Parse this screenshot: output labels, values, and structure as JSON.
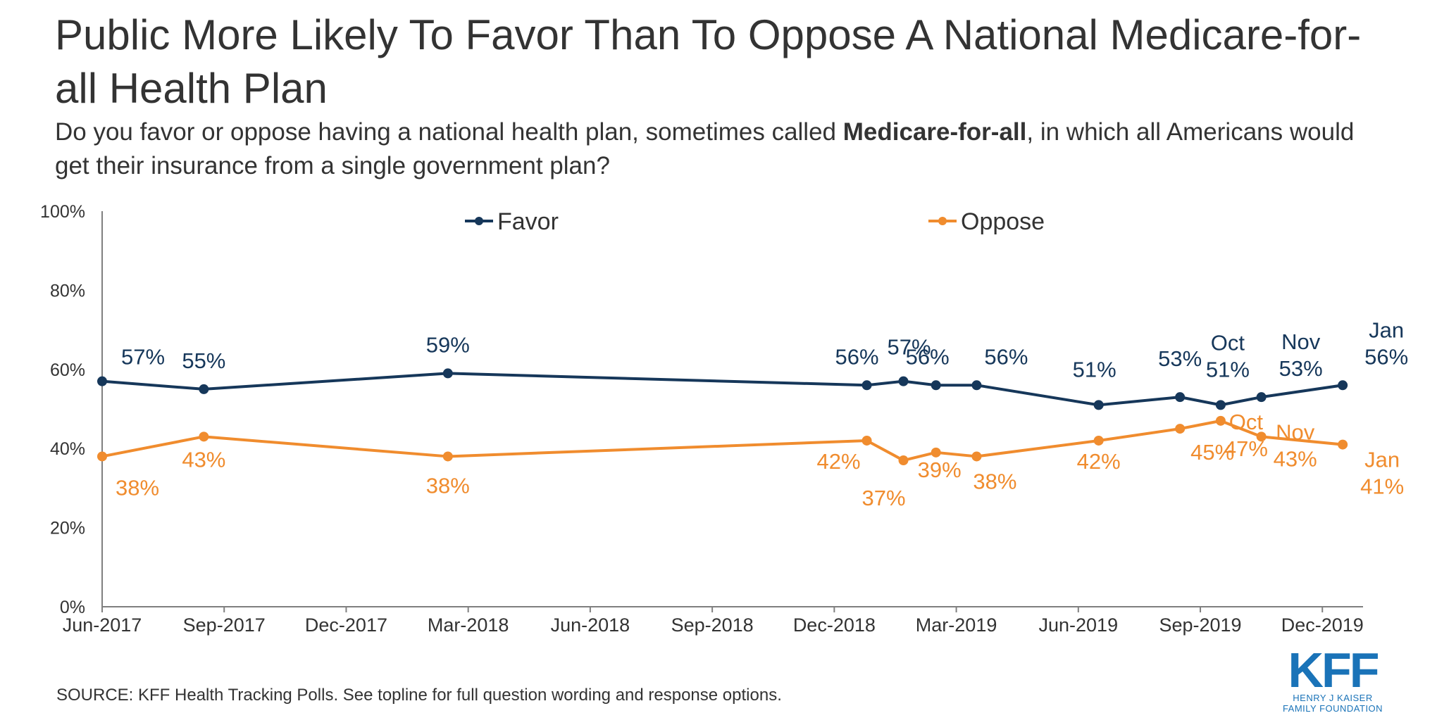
{
  "title": "Public More Likely To Favor Than To Oppose A National Medicare-for-all Health Plan",
  "subtitle_before": "Do you favor or oppose having a national health plan, sometimes called ",
  "subtitle_bold": "Medicare-for-all",
  "subtitle_after": ", in which all Americans would get their insurance from a single government plan?",
  "source": "SOURCE: KFF Health Tracking Polls. See topline for full question wording and response options.",
  "logo": {
    "mark": "KFF",
    "line1": "HENRY J KAISER",
    "line2": "FAMILY FOUNDATION",
    "color": "#1a73b8"
  },
  "chart_data": {
    "type": "line",
    "ylim": [
      0,
      100
    ],
    "yticks": [
      0,
      20,
      40,
      60,
      80,
      100
    ],
    "ytick_labels": [
      "0%",
      "20%",
      "40%",
      "60%",
      "80%",
      "100%"
    ],
    "xlim": [
      0,
      31
    ],
    "xticks": [
      0,
      3,
      6,
      9,
      12,
      15,
      18,
      21,
      24,
      27,
      30
    ],
    "xtick_labels": [
      "Jun-2017",
      "Sep-2017",
      "Dec-2017",
      "Mar-2018",
      "Jun-2018",
      "Sep-2018",
      "Dec-2018",
      "Mar-2019",
      "Jun-2019",
      "Sep-2019",
      "Dec-2019"
    ],
    "x_note": "x is months since Jun-2017",
    "legend_position": "top-center",
    "series": [
      {
        "name": "Favor",
        "color": "#16375a",
        "points": [
          {
            "x": 0,
            "y": 57,
            "label": "57%"
          },
          {
            "x": 2.5,
            "y": 55,
            "label": "55%"
          },
          {
            "x": 8.5,
            "y": 59,
            "label": "59%"
          },
          {
            "x": 18.8,
            "y": 56,
            "label": "56%"
          },
          {
            "x": 19.7,
            "y": 57,
            "label": "57%"
          },
          {
            "x": 20.5,
            "y": 56,
            "label": "56%"
          },
          {
            "x": 21.5,
            "y": 56,
            "label": "56%"
          },
          {
            "x": 24.5,
            "y": 51,
            "label": "51%"
          },
          {
            "x": 26.5,
            "y": 53,
            "label": "53%"
          },
          {
            "x": 27.5,
            "y": 51,
            "label": "51%",
            "month": "Oct"
          },
          {
            "x": 28.5,
            "y": 53,
            "label": "53%",
            "month": "Nov"
          },
          {
            "x": 30.5,
            "y": 56,
            "label": "56%",
            "month": "Jan"
          }
        ]
      },
      {
        "name": "Oppose",
        "color": "#f08c2e",
        "points": [
          {
            "x": 0,
            "y": 38,
            "label": "38%"
          },
          {
            "x": 2.5,
            "y": 43,
            "label": "43%"
          },
          {
            "x": 8.5,
            "y": 38,
            "label": "38%"
          },
          {
            "x": 18.8,
            "y": 42,
            "label": "42%"
          },
          {
            "x": 19.7,
            "y": 37,
            "label": "37%"
          },
          {
            "x": 20.5,
            "y": 39,
            "label": "39%"
          },
          {
            "x": 21.5,
            "y": 38,
            "label": "38%"
          },
          {
            "x": 24.5,
            "y": 42,
            "label": "42%"
          },
          {
            "x": 26.5,
            "y": 45,
            "label": "45%"
          },
          {
            "x": 27.5,
            "y": 47,
            "label": "47%",
            "month": "Oct"
          },
          {
            "x": 28.5,
            "y": 43,
            "label": "43%",
            "month": "Nov"
          },
          {
            "x": 30.5,
            "y": 41,
            "label": "41%",
            "month": "Jan"
          }
        ]
      }
    ]
  }
}
